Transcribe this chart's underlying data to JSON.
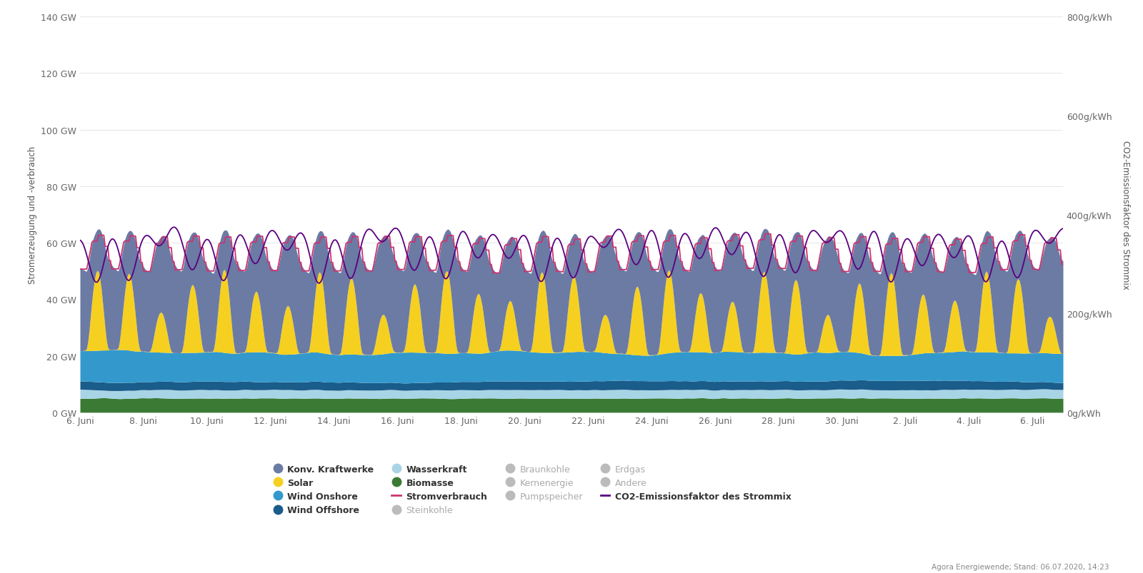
{
  "ylabel_left": "Stromerzeugung und -verbrauch",
  "ylabel_right": "CO2-Emissionsfaktor des Strommix",
  "ylim_left": [
    0,
    140
  ],
  "ylim_right": [
    0,
    800
  ],
  "yticks_left": [
    0,
    20,
    40,
    60,
    80,
    100,
    120,
    140
  ],
  "ytick_labels_left": [
    "0 GW",
    "20 GW",
    "40 GW",
    "60 GW",
    "80 GW",
    "100 GW",
    "120 GW",
    "140 GW"
  ],
  "yticks_right": [
    0,
    200,
    400,
    600,
    800
  ],
  "ytick_labels_right": [
    "0g/kWh",
    "200g/kWh",
    "400g/kWh",
    "600g/kWh",
    "800g/kWh"
  ],
  "background_color": "#ffffff",
  "grid_color": "#e8e8e8",
  "colors": {
    "biomasse": "#3a7a35",
    "wasserkraft": "#a8d4e6",
    "wind_offshore": "#1a5c8a",
    "wind_onshore": "#3399cc",
    "solar": "#f5d020",
    "konv_kraftwerke": "#6b7ba4",
    "stromverbrauch": "#cc3370",
    "co2": "#5a0080"
  },
  "footnote": "Agora Energiewende; Stand: 06.07.2020, 14:23",
  "n_points": 744
}
